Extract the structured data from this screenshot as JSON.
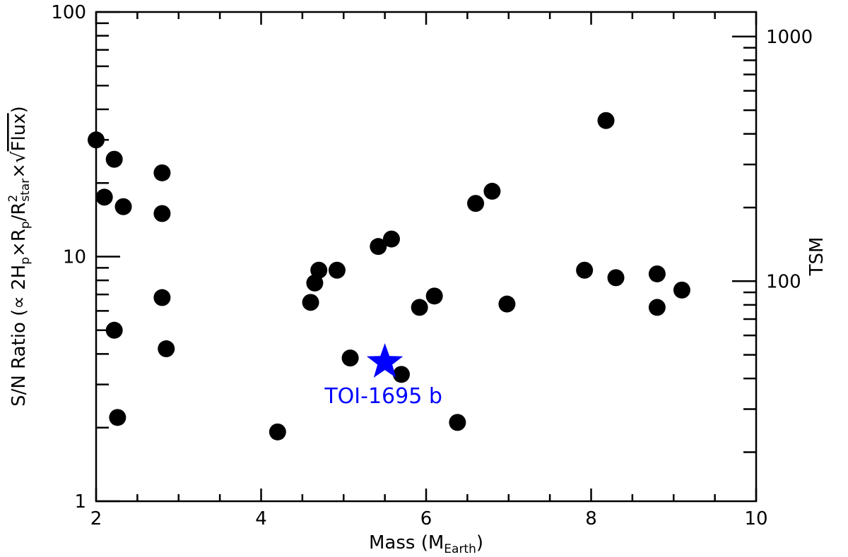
{
  "chart_data": {
    "type": "scatter",
    "xlabel": "Mass (M",
    "xlabel_sub": "Earth",
    "xlabel_close": ")",
    "ylabel_parts": {
      "prefix": "S/N Ratio (∝ 2H",
      "sub_p1": "p",
      "times1": "×R",
      "sub_p2": "p",
      "slash": "/R",
      "sup2": "2",
      "sub_star": "star",
      "times2": "×√",
      "flux": "Flux",
      "close": ")"
    },
    "y2label": "TSM",
    "xlim": [
      2,
      10
    ],
    "ylim": [
      1,
      100
    ],
    "y_scale": "log",
    "y2_scale": "log",
    "y2lim": [
      12.6,
      1260
    ],
    "x_ticks": [
      2,
      4,
      6,
      8,
      10
    ],
    "x_tick_labels": [
      "2",
      "4",
      "6",
      "8",
      "10"
    ],
    "y_ticks": [
      1,
      10,
      100
    ],
    "y_tick_labels": [
      "1",
      "10",
      "100"
    ],
    "y2_ticks": [
      100,
      1000
    ],
    "y2_tick_labels": [
      "100",
      "1000"
    ],
    "marker_color": "#000000",
    "series": [
      {
        "points": [
          {
            "x": 2.0,
            "y": 30.0
          },
          {
            "x": 2.1,
            "y": 17.5
          },
          {
            "x": 2.22,
            "y": 25.0
          },
          {
            "x": 2.33,
            "y": 16.0
          },
          {
            "x": 2.8,
            "y": 22.0
          },
          {
            "x": 2.8,
            "y": 15.0
          },
          {
            "x": 2.8,
            "y": 6.8
          },
          {
            "x": 2.85,
            "y": 4.2
          },
          {
            "x": 2.22,
            "y": 5.0
          },
          {
            "x": 2.26,
            "y": 2.2
          },
          {
            "x": 4.2,
            "y": 1.92
          },
          {
            "x": 4.6,
            "y": 6.5
          },
          {
            "x": 4.65,
            "y": 7.8
          },
          {
            "x": 4.7,
            "y": 8.8
          },
          {
            "x": 4.92,
            "y": 8.8
          },
          {
            "x": 5.08,
            "y": 3.85
          },
          {
            "x": 5.42,
            "y": 11.0
          },
          {
            "x": 5.58,
            "y": 11.8
          },
          {
            "x": 5.7,
            "y": 3.3
          },
          {
            "x": 5.92,
            "y": 6.2
          },
          {
            "x": 6.1,
            "y": 6.9
          },
          {
            "x": 6.38,
            "y": 2.1
          },
          {
            "x": 6.6,
            "y": 16.5
          },
          {
            "x": 6.8,
            "y": 18.5
          },
          {
            "x": 6.98,
            "y": 6.4
          },
          {
            "x": 7.92,
            "y": 8.8
          },
          {
            "x": 8.18,
            "y": 36.0
          },
          {
            "x": 8.3,
            "y": 8.2
          },
          {
            "x": 8.8,
            "y": 8.5
          },
          {
            "x": 8.8,
            "y": 6.2
          },
          {
            "x": 9.1,
            "y": 7.3
          }
        ]
      }
    ],
    "highlight": {
      "label": "TOI-1695 b",
      "x": 5.5,
      "y": 3.7,
      "marker": "star",
      "color": "#0000ff"
    }
  }
}
